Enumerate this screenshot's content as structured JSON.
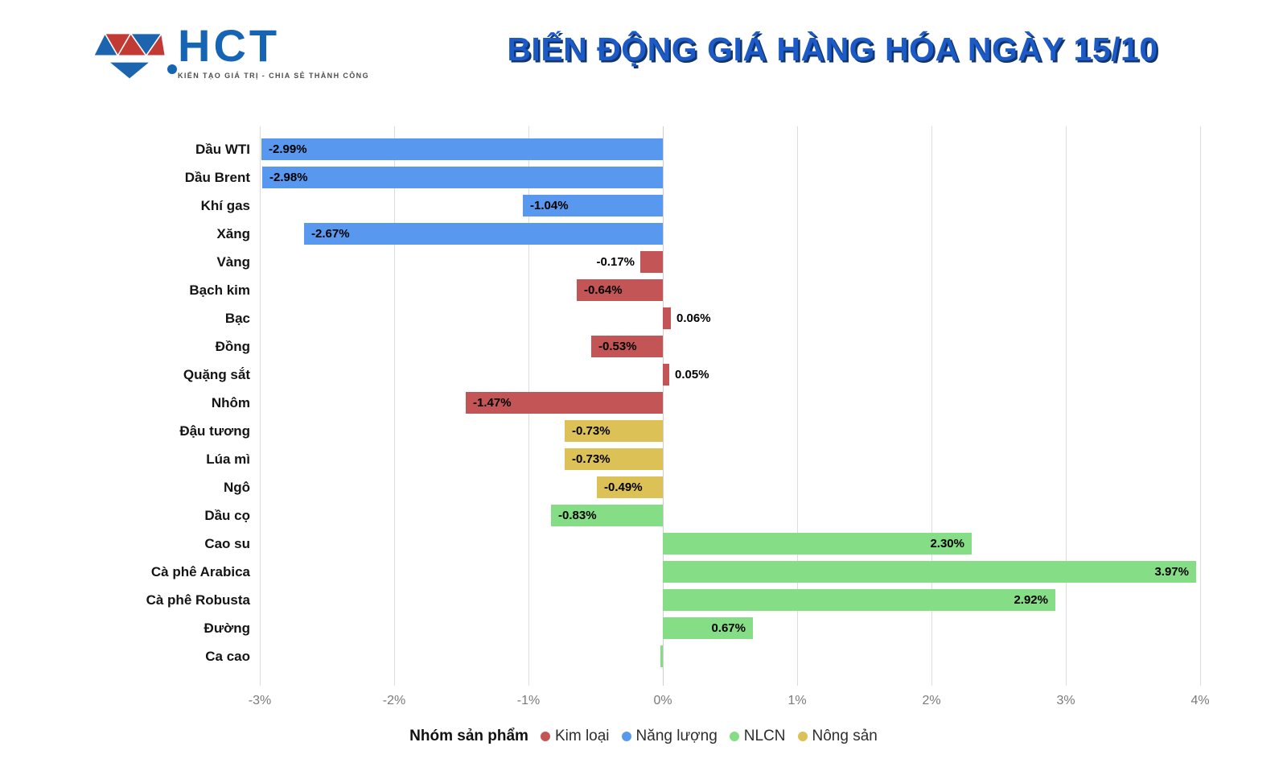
{
  "logo": {
    "brand": "HCT",
    "tagline": "KIẾN TẠO GIÁ TRỊ - CHIA SẺ THÀNH CÔNG",
    "colors": {
      "blue": "#1D64AE",
      "red": "#C13B34"
    }
  },
  "header": {
    "title": "BIẾN ĐỘNG GIÁ HÀNG HÓA NGÀY 15/10",
    "title_color": "#1C5BC7"
  },
  "chart_data": {
    "type": "bar",
    "orientation": "horizontal",
    "title": "BIẾN ĐỘNG GIÁ HÀNG HÓA NGÀY 15/10",
    "xlim": [
      -3,
      4
    ],
    "x_ticks": [
      "-3%",
      "-2%",
      "-1%",
      "0%",
      "1%",
      "2%",
      "3%",
      "4%"
    ],
    "grid": true,
    "items": [
      {
        "name": "Dầu WTI",
        "value": -2.99,
        "label": "-2.99%",
        "group": "Năng lượng"
      },
      {
        "name": "Dầu Brent",
        "value": -2.98,
        "label": "-2.98%",
        "group": "Năng lượng"
      },
      {
        "name": "Khí gas",
        "value": -1.04,
        "label": "-1.04%",
        "group": "Năng lượng"
      },
      {
        "name": "Xăng",
        "value": -2.67,
        "label": "-2.67%",
        "group": "Năng lượng"
      },
      {
        "name": "Vàng",
        "value": -0.17,
        "label": "-0.17%",
        "group": "Kim loại"
      },
      {
        "name": "Bạch kim",
        "value": -0.64,
        "label": "-0.64%",
        "group": "Kim loại"
      },
      {
        "name": "Bạc",
        "value": 0.06,
        "label": "0.06%",
        "group": "Kim loại"
      },
      {
        "name": "Đồng",
        "value": -0.53,
        "label": "-0.53%",
        "group": "Kim loại"
      },
      {
        "name": "Quặng sắt",
        "value": 0.05,
        "label": "0.05%",
        "group": "Kim loại"
      },
      {
        "name": "Nhôm",
        "value": -1.47,
        "label": "-1.47%",
        "group": "Kim loại"
      },
      {
        "name": "Đậu tương",
        "value": -0.73,
        "label": "-0.73%",
        "group": "Nông sản"
      },
      {
        "name": "Lúa mì",
        "value": -0.73,
        "label": "-0.73%",
        "group": "Nông sản"
      },
      {
        "name": "Ngô",
        "value": -0.49,
        "label": "-0.49%",
        "group": "Nông sản"
      },
      {
        "name": "Dầu cọ",
        "value": -0.83,
        "label": "-0.83%",
        "group": "NLCN"
      },
      {
        "name": "Cao su",
        "value": 2.3,
        "label": "2.30%",
        "group": "NLCN"
      },
      {
        "name": "Cà phê Arabica",
        "value": 3.97,
        "label": "3.97%",
        "group": "NLCN"
      },
      {
        "name": "Cà phê Robusta",
        "value": 2.92,
        "label": "2.92%",
        "group": "NLCN"
      },
      {
        "name": "Đường",
        "value": 0.67,
        "label": "0.67%",
        "group": "NLCN"
      },
      {
        "name": "Ca cao",
        "value": -0.02,
        "label": "",
        "group": "NLCN"
      }
    ],
    "group_colors": {
      "Kim loại": "#C35556",
      "Năng lượng": "#5899EF",
      "NLCN": "#85DD85",
      "Nông sản": "#DCC157"
    },
    "legend": {
      "title": "Nhóm sản phẩm",
      "position": "bottom",
      "items": [
        {
          "label": "Kim loại",
          "color": "#C35556"
        },
        {
          "label": "Năng lượng",
          "color": "#5899EF"
        },
        {
          "label": "NLCN",
          "color": "#85DD85"
        },
        {
          "label": "Nông sản",
          "color": "#DCC157"
        }
      ]
    }
  }
}
